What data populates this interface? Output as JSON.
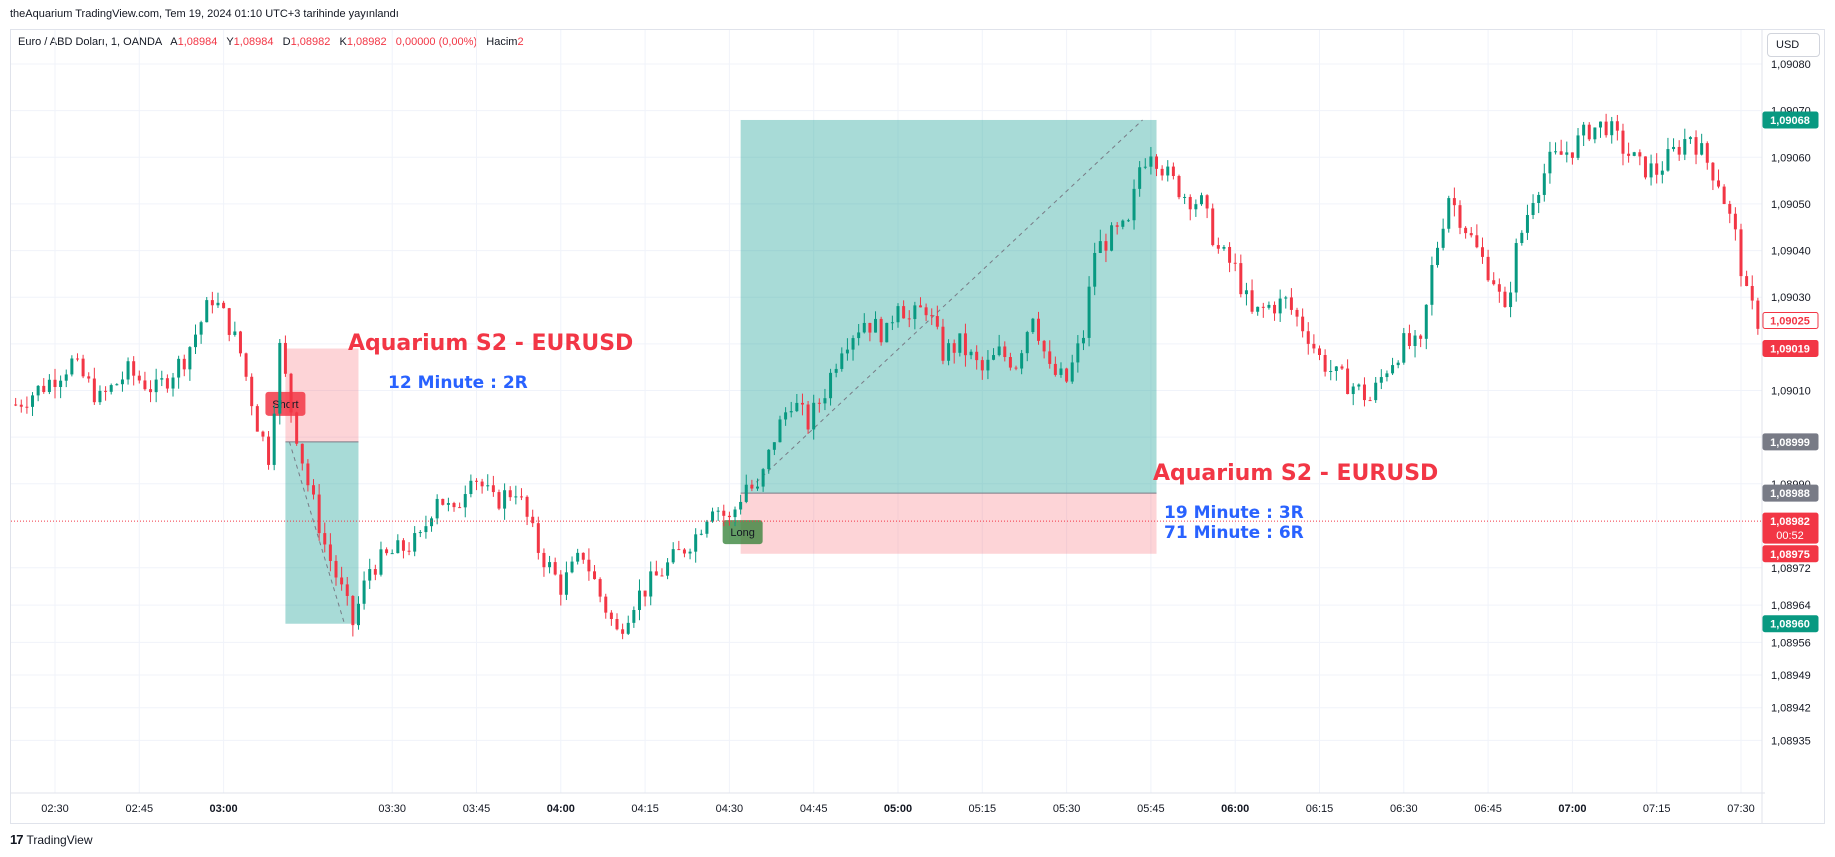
{
  "header": {
    "published_line": "theAquarium TradingView.com, Tem 19, 2024 01:10 UTC+3 tarihinde yayınlandı"
  },
  "legend": {
    "symbol": "Euro / ABD Doları, 1, OANDA",
    "o_label": "A",
    "o_value": "1,08984",
    "h_label": "Y",
    "h_value": "1,08984",
    "l_label": "D",
    "l_value": "1,08982",
    "c_label": "K",
    "c_value": "1,08982",
    "change": "0,00000 (0,00%)",
    "volume_label": "Hacim",
    "volume_value": "2"
  },
  "currency_button": "USD",
  "footer": {
    "brand": "TradingView"
  },
  "colors": {
    "up": "#089981",
    "down": "#f23645",
    "profit_zone": "#26a69a",
    "loss_zone": "#f7525f",
    "title_red": "#f23645",
    "note_blue": "#2962ff",
    "grid": "#f0f3fa"
  },
  "chart_data": {
    "type": "candlestick",
    "symbol": "EURUSD",
    "timeframe": "1",
    "x_ticks": [
      "02:30",
      "02:45",
      "03:00",
      "03:30",
      "03:45",
      "04:00",
      "04:15",
      "04:30",
      "04:45",
      "05:00",
      "05:15",
      "05:30",
      "05:45",
      "06:00",
      "06:15",
      "06:30",
      "06:45",
      "07:00",
      "07:15",
      "07:30"
    ],
    "x_ticks_bold": [
      "03:00",
      "04:00",
      "05:00",
      "06:00",
      "07:00"
    ],
    "y_ticks": [
      "1,09080",
      "1,09070",
      "1,09060",
      "1,09050",
      "1,09040",
      "1,09030",
      "1,09020",
      "1,09010",
      "1,09000",
      "1,08990",
      "1,08972",
      "1,08964",
      "1,08956",
      "1,08949",
      "1,08942",
      "1,08935"
    ],
    "y_range": [
      1.08931,
      1.09086
    ],
    "price_labels": [
      {
        "text": "1,09068",
        "kind": "up"
      },
      {
        "text": "1,09025",
        "kind": "outline-red"
      },
      {
        "text": "1,09019",
        "kind": "down"
      },
      {
        "text": "1,08999",
        "kind": "gray"
      },
      {
        "text": "1,08988",
        "kind": "gray"
      },
      {
        "text": "1,08982",
        "sub": "00:52",
        "kind": "down"
      },
      {
        "text": "1,08975",
        "kind": "down"
      },
      {
        "text": "1,08960",
        "kind": "up"
      }
    ],
    "current_price": 1.08982,
    "price_path": [
      [
        "02:23",
        1.09007
      ],
      [
        "02:28",
        1.09011
      ],
      [
        "02:33",
        1.09016
      ],
      [
        "02:38",
        1.09008
      ],
      [
        "02:43",
        1.09014
      ],
      [
        "02:48",
        1.0901
      ],
      [
        "02:53",
        1.09017
      ],
      [
        "02:58",
        1.0903
      ],
      [
        "03:01",
        1.09024
      ],
      [
        "03:03",
        1.09018
      ],
      [
        "03:06",
        1.09003
      ],
      [
        "03:08",
        1.08996
      ],
      [
        "03:10",
        1.09019
      ],
      [
        "03:12",
        1.09006
      ],
      [
        "03:15",
        1.0899
      ],
      [
        "03:18",
        1.08977
      ],
      [
        "03:21",
        1.08967
      ],
      [
        "03:23",
        1.0896
      ],
      [
        "03:26",
        1.08972
      ],
      [
        "03:30",
        1.08975
      ],
      [
        "03:35",
        1.08978
      ],
      [
        "03:38",
        1.08988
      ],
      [
        "03:41",
        1.08983
      ],
      [
        "03:44",
        1.08993
      ],
      [
        "03:48",
        1.08986
      ],
      [
        "03:52",
        1.08989
      ],
      [
        "03:56",
        1.08976
      ],
      [
        "04:00",
        1.08968
      ],
      [
        "04:04",
        1.08975
      ],
      [
        "04:07",
        1.08966
      ],
      [
        "04:10",
        1.08958
      ],
      [
        "04:13",
        1.08965
      ],
      [
        "04:17",
        1.0897
      ],
      [
        "04:21",
        1.08975
      ],
      [
        "04:24",
        1.08979
      ],
      [
        "04:27",
        1.08986
      ],
      [
        "04:30",
        1.08982
      ],
      [
        "04:33",
        1.0899
      ],
      [
        "04:35",
        1.08988
      ],
      [
        "04:38",
        1.09
      ],
      [
        "04:41",
        1.09008
      ],
      [
        "04:44",
        1.09003
      ],
      [
        "04:47",
        1.0901
      ],
      [
        "04:50",
        1.0902
      ],
      [
        "04:54",
        1.09025
      ],
      [
        "04:58",
        1.09022
      ],
      [
        "05:00",
        1.0903
      ],
      [
        "05:02",
        1.09025
      ],
      [
        "05:05",
        1.09028
      ],
      [
        "05:08",
        1.09018
      ],
      [
        "05:11",
        1.0902
      ],
      [
        "05:15",
        1.09014
      ],
      [
        "05:18",
        1.09018
      ],
      [
        "05:21",
        1.09016
      ],
      [
        "05:24",
        1.09027
      ],
      [
        "05:27",
        1.09014
      ],
      [
        "05:30",
        1.09012
      ],
      [
        "05:33",
        1.09022
      ],
      [
        "05:35",
        1.0904
      ],
      [
        "05:38",
        1.09043
      ],
      [
        "05:41",
        1.09045
      ],
      [
        "05:43",
        1.09058
      ],
      [
        "05:45",
        1.09062
      ],
      [
        "05:48",
        1.09056
      ],
      [
        "05:51",
        1.09052
      ],
      [
        "05:54",
        1.0905
      ],
      [
        "05:57",
        1.0904
      ],
      [
        "06:00",
        1.09036
      ],
      [
        "06:03",
        1.09026
      ],
      [
        "06:06",
        1.09028
      ],
      [
        "06:09",
        1.09029
      ],
      [
        "06:13",
        1.09022
      ],
      [
        "06:15",
        1.09017
      ],
      [
        "06:18",
        1.09013
      ],
      [
        "06:21",
        1.09011
      ],
      [
        "06:24",
        1.09008
      ],
      [
        "06:27",
        1.09015
      ],
      [
        "06:30",
        1.0902
      ],
      [
        "06:33",
        1.09019
      ],
      [
        "06:35",
        1.09036
      ],
      [
        "06:38",
        1.09052
      ],
      [
        "06:41",
        1.09045
      ],
      [
        "06:43",
        1.0904
      ],
      [
        "06:46",
        1.09034
      ],
      [
        "06:48",
        1.09026
      ],
      [
        "06:50",
        1.0904
      ],
      [
        "06:53",
        1.09052
      ],
      [
        "06:56",
        1.09059
      ],
      [
        "07:00",
        1.09062
      ],
      [
        "07:03",
        1.09066
      ],
      [
        "07:06",
        1.09067
      ],
      [
        "07:09",
        1.09062
      ],
      [
        "07:12",
        1.09058
      ],
      [
        "07:15",
        1.09057
      ],
      [
        "07:18",
        1.09061
      ],
      [
        "07:21",
        1.09065
      ],
      [
        "07:24",
        1.09059
      ],
      [
        "07:26",
        1.09055
      ],
      [
        "07:29",
        1.09043
      ],
      [
        "07:31",
        1.0903
      ],
      [
        "07:33",
        1.09025
      ]
    ],
    "positions": [
      {
        "side": "short",
        "label": "Short",
        "start": "03:11",
        "end": "03:24",
        "entry": 1.08999,
        "stop": 1.09019,
        "target": 1.0896,
        "title": "Aquarium S2 - EURUSD",
        "notes": [
          "12 Minute : 2R"
        ]
      },
      {
        "side": "long",
        "label": "Long",
        "start": "04:32",
        "end": "05:46",
        "entry": 1.08988,
        "stop": 1.08975,
        "target": 1.09068,
        "title": "Aquarium S2 - EURUSD",
        "notes": [
          "19 Minute : 3R",
          "71 Minute : 6R"
        ]
      }
    ]
  }
}
